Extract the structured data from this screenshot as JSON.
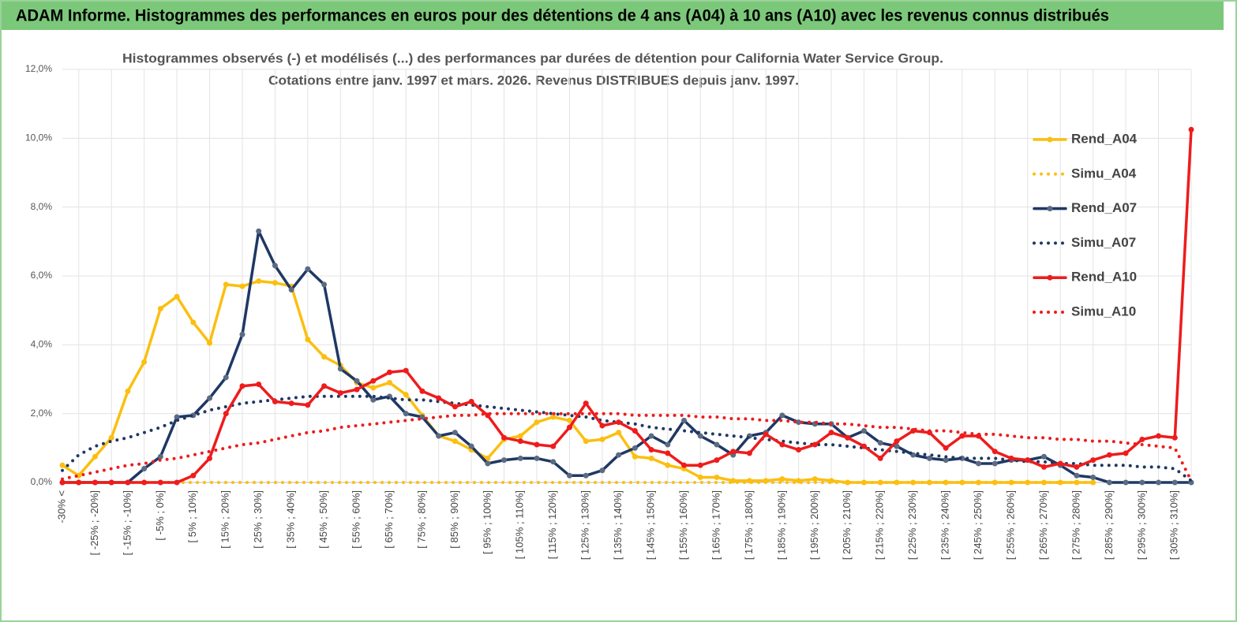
{
  "chart_data": {
    "type": "line",
    "title": "ADAM Informe. Histogrammes des performances en euros pour des détentions de 4 ans (A04) à 10 ans (A10) avec les revenus connus distribués",
    "subtitle": [
      "Histogrammes observés (-) et modélisés (...) des performances par durées de détention pour California Water Service Group.",
      "Cotations entre janv. 1997 et mars. 2026. Revenus DISTRIBUES depuis janv. 1997."
    ],
    "categories": [
      "-30% <",
      null,
      "[ -25% ; -20%]",
      null,
      "[ -15% ; -10%]",
      null,
      "[ -5% ; 0%]",
      null,
      "[ 5% ; 10%]",
      null,
      "[ 15% ; 20%]",
      null,
      "[ 25% ; 30%]",
      null,
      "[ 35% ; 40%]",
      null,
      "[ 45% ; 50%]",
      null,
      "[ 55% ; 60%]",
      null,
      "[ 65% ; 70%]",
      null,
      "[ 75% ; 80%]",
      null,
      "[ 85% ; 90%]",
      null,
      "[ 95% ; 100%]",
      null,
      "[ 105% ; 110%]",
      null,
      "[ 115% ; 120%]",
      null,
      "[ 125% ; 130%]",
      null,
      "[ 135% ; 140%]",
      null,
      "[ 145% ; 150%]",
      null,
      "[ 155% ; 160%]",
      null,
      "[ 165% ; 170%]",
      null,
      "[ 175% ; 180%]",
      null,
      "[ 185% ; 190%]",
      null,
      "[ 195% ; 200%]",
      null,
      "[ 205% ; 210%]",
      null,
      "[ 215% ; 220%]",
      null,
      "[ 225% ; 230%]",
      null,
      "[ 235% ; 240%]",
      null,
      "[ 245% ; 250%]",
      null,
      "[ 255% ; 260%]",
      null,
      "[ 265% ; 270%]",
      null,
      "[ 275% ; 280%]",
      null,
      "[ 285% ; 290%]",
      null,
      "[ 295% ; 300%]",
      null,
      "[ 305% ; 310%]",
      null
    ],
    "series": [
      {
        "name": "Rend_A04",
        "color": "#fbbf10",
        "line_style": "solid",
        "markers": true,
        "values": [
          0.5,
          0.2,
          0.75,
          1.3,
          2.65,
          3.5,
          5.05,
          5.4,
          4.65,
          4.05,
          5.75,
          5.7,
          5.85,
          5.8,
          5.7,
          4.15,
          3.65,
          3.4,
          2.9,
          2.75,
          2.9,
          2.55,
          1.95,
          1.35,
          1.2,
          0.95,
          0.7,
          1.25,
          1.35,
          1.75,
          1.9,
          1.8,
          1.2,
          1.25,
          1.45,
          0.75,
          0.7,
          0.5,
          0.4,
          0.15,
          0.15,
          0.05,
          0.05,
          0.05,
          0.1,
          0.05,
          0.1,
          0.05,
          0,
          0,
          0,
          0,
          0,
          0,
          0,
          0,
          0,
          0,
          0,
          0,
          0,
          0,
          0,
          0,
          null,
          null,
          null,
          null,
          null,
          null
        ]
      },
      {
        "name": "Simu_A04",
        "color": "#fbbf10",
        "line_style": "dotted",
        "markers": false,
        "values": [
          0,
          0,
          0,
          0,
          0,
          0,
          0,
          0,
          0,
          0,
          0,
          0,
          0,
          0,
          0,
          0,
          0,
          0,
          0,
          0,
          0,
          0,
          0,
          0,
          0,
          0,
          0,
          0,
          0,
          0,
          0,
          0,
          0,
          0,
          0,
          0,
          0,
          0,
          0,
          0,
          0,
          0,
          0,
          0,
          0,
          0,
          0,
          0,
          0,
          0,
          0,
          0,
          0,
          0,
          0,
          0,
          0,
          0,
          0,
          0,
          0,
          0,
          0,
          0,
          null,
          null,
          null,
          null,
          null,
          null
        ]
      },
      {
        "name": "Rend_A07",
        "color": "#1f3864",
        "marker_color": "#5b6b82",
        "line_style": "solid",
        "markers": true,
        "values": [
          0,
          0,
          0,
          0,
          0,
          0.4,
          0.75,
          1.9,
          1.95,
          2.45,
          3.05,
          4.3,
          7.3,
          6.3,
          5.6,
          6.2,
          5.75,
          3.3,
          2.95,
          2.4,
          2.5,
          2.0,
          1.9,
          1.35,
          1.45,
          1.05,
          0.55,
          0.65,
          0.7,
          0.7,
          0.6,
          0.2,
          0.2,
          0.35,
          0.8,
          1.0,
          1.35,
          1.1,
          1.8,
          1.35,
          1.1,
          0.8,
          1.35,
          1.45,
          1.95,
          1.75,
          1.7,
          1.7,
          1.3,
          1.5,
          1.15,
          1.05,
          0.8,
          0.7,
          0.65,
          0.7,
          0.55,
          0.55,
          0.65,
          0.65,
          0.75,
          0.5,
          0.2,
          0.15,
          0,
          0,
          0,
          0,
          0,
          0
        ]
      },
      {
        "name": "Simu_A07",
        "color": "#1f3864",
        "line_style": "dotted",
        "markers": false,
        "values": [
          0.35,
          0.8,
          1.05,
          1.2,
          1.3,
          1.45,
          1.6,
          1.8,
          1.95,
          2.1,
          2.2,
          2.3,
          2.35,
          2.4,
          2.45,
          2.5,
          2.5,
          2.5,
          2.5,
          2.5,
          2.45,
          2.4,
          2.4,
          2.35,
          2.3,
          2.25,
          2.2,
          2.15,
          2.1,
          2.05,
          2.0,
          1.95,
          1.9,
          1.8,
          1.75,
          1.7,
          1.6,
          1.55,
          1.5,
          1.45,
          1.4,
          1.35,
          1.3,
          1.25,
          1.2,
          1.15,
          1.1,
          1.1,
          1.05,
          1.0,
          0.95,
          0.9,
          0.85,
          0.8,
          0.75,
          0.7,
          0.7,
          0.7,
          0.65,
          0.6,
          0.6,
          0.55,
          0.55,
          0.5,
          0.5,
          0.5,
          0.45,
          0.45,
          0.4,
          0.05
        ]
      },
      {
        "name": "Rend_A10",
        "color": "#ee1c1c",
        "line_style": "solid",
        "markers": true,
        "values": [
          0,
          0,
          0,
          0,
          0,
          0,
          0,
          0,
          0.2,
          0.7,
          2.0,
          2.8,
          2.85,
          2.35,
          2.3,
          2.25,
          2.8,
          2.6,
          2.7,
          2.95,
          3.2,
          3.25,
          2.65,
          2.45,
          2.2,
          2.35,
          1.95,
          1.3,
          1.2,
          1.1,
          1.05,
          1.6,
          2.3,
          1.65,
          1.75,
          1.5,
          0.95,
          0.85,
          0.5,
          0.5,
          0.65,
          0.9,
          0.85,
          1.4,
          1.1,
          0.95,
          1.1,
          1.45,
          1.3,
          1.05,
          0.7,
          1.2,
          1.5,
          1.45,
          1.0,
          1.35,
          1.35,
          0.9,
          0.7,
          0.65,
          0.45,
          0.55,
          0.45,
          0.65,
          0.8,
          0.85,
          1.25,
          1.35,
          1.3,
          10.25
        ]
      },
      {
        "name": "Simu_A10",
        "color": "#ee1c1c",
        "line_style": "dotted",
        "markers": false,
        "values": [
          0.1,
          0.2,
          0.3,
          0.4,
          0.5,
          0.55,
          0.65,
          0.7,
          0.8,
          0.9,
          1.0,
          1.1,
          1.15,
          1.25,
          1.35,
          1.45,
          1.5,
          1.6,
          1.65,
          1.7,
          1.75,
          1.8,
          1.85,
          1.9,
          1.95,
          1.95,
          2.0,
          2.0,
          2.0,
          2.0,
          2.0,
          2.0,
          2.0,
          2.0,
          2.0,
          1.95,
          1.95,
          1.95,
          1.95,
          1.9,
          1.9,
          1.85,
          1.85,
          1.8,
          1.8,
          1.75,
          1.75,
          1.7,
          1.7,
          1.65,
          1.6,
          1.6,
          1.55,
          1.5,
          1.5,
          1.45,
          1.4,
          1.4,
          1.35,
          1.3,
          1.3,
          1.25,
          1.25,
          1.2,
          1.2,
          1.15,
          1.1,
          1.05,
          1.0,
          0.05
        ]
      }
    ],
    "ylim": [
      0,
      12
    ],
    "yticks": [
      {
        "value": 0,
        "label": "0,0%"
      },
      {
        "value": 2,
        "label": "2,0%"
      },
      {
        "value": 4,
        "label": "4,0%"
      },
      {
        "value": 6,
        "label": "6,0%"
      },
      {
        "value": 8,
        "label": "8,0%"
      },
      {
        "value": 10,
        "label": "10,0%"
      },
      {
        "value": 12,
        "label": "12,0%"
      }
    ],
    "grid": true,
    "legend": "right"
  }
}
